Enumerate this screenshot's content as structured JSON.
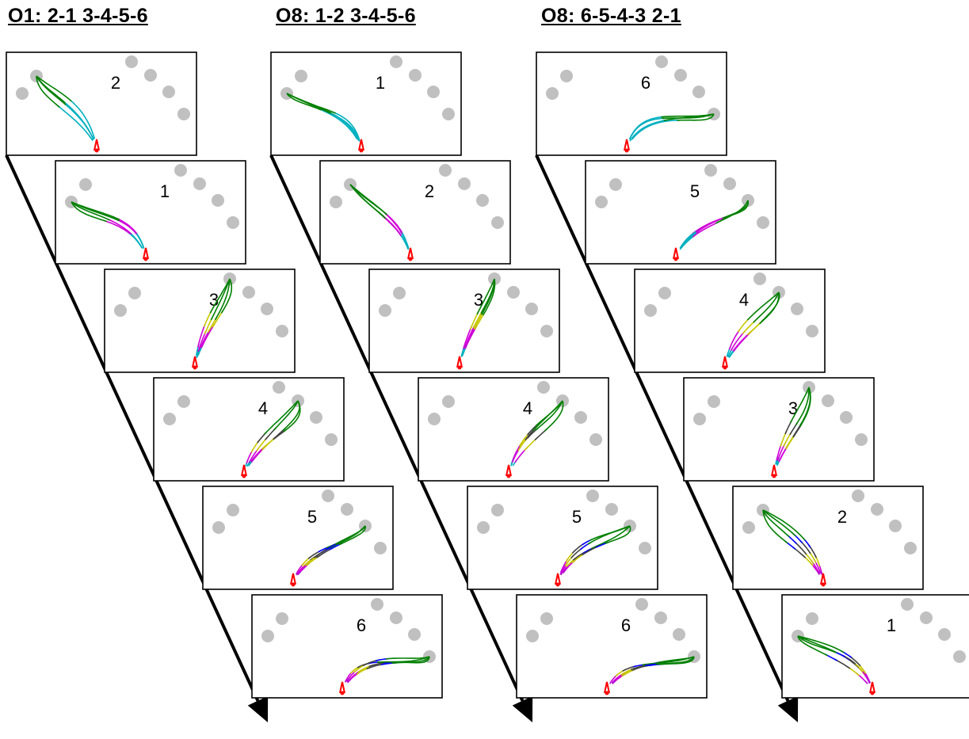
{
  "columns": [
    {
      "title": "O1: 2-1 3-4-5-6",
      "panels": [
        "2",
        "1",
        "3",
        "4",
        "5",
        "6"
      ]
    },
    {
      "title": "O8: 1-2 3-4-5-6",
      "panels": [
        "1",
        "2",
        "3",
        "4",
        "5",
        "6"
      ]
    },
    {
      "title": "O8: 6-5-4-3 2-1",
      "panels": [
        "6",
        "5",
        "4",
        "3",
        "2",
        "1"
      ]
    }
  ],
  "colors": {
    "target": "#c0c0c0",
    "start": "#ff0000",
    "segments": [
      "#00b0c0",
      "#d000d8",
      "#c8c800",
      "#404040",
      "#0000ff",
      "#008000"
    ]
  }
}
